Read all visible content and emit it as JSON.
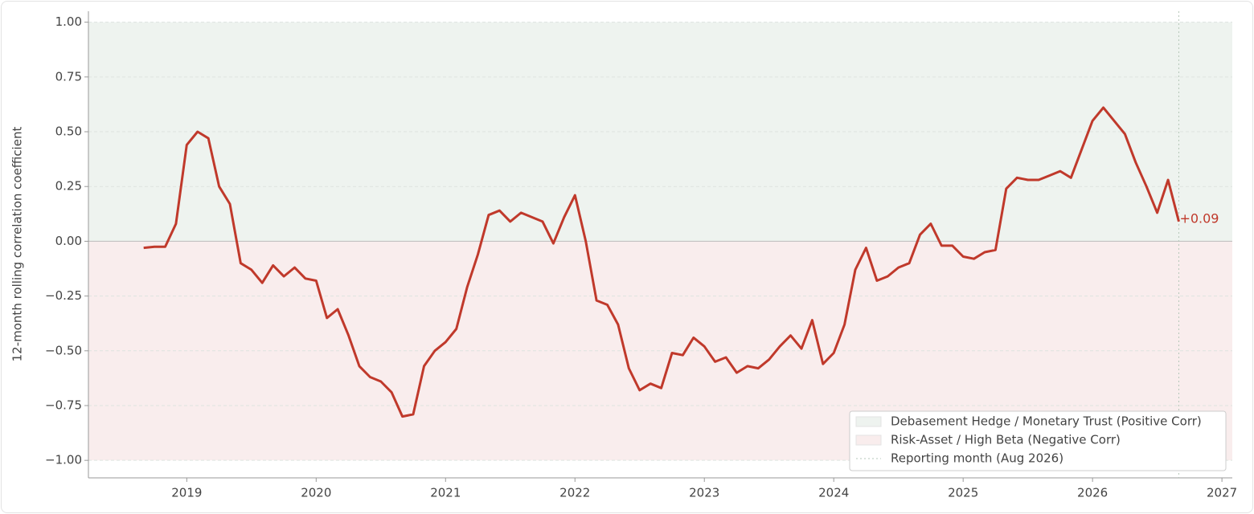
{
  "chart_data": {
    "type": "line",
    "y_label": "12-month rolling correlation coefficient",
    "x": [
      "2018-08",
      "2018-09",
      "2018-10",
      "2018-11",
      "2018-12",
      "2019-01",
      "2019-02",
      "2019-03",
      "2019-04",
      "2019-05",
      "2019-06",
      "2019-07",
      "2019-08",
      "2019-09",
      "2019-10",
      "2019-11",
      "2019-12",
      "2020-01",
      "2020-02",
      "2020-03",
      "2020-04",
      "2020-05",
      "2020-06",
      "2020-07",
      "2020-08",
      "2020-09",
      "2020-10",
      "2020-11",
      "2020-12",
      "2021-01",
      "2021-02",
      "2021-03",
      "2021-04",
      "2021-05",
      "2021-06",
      "2021-07",
      "2021-08",
      "2021-09",
      "2021-10",
      "2021-11",
      "2021-12",
      "2022-01",
      "2022-02",
      "2022-03",
      "2022-04",
      "2022-05",
      "2022-06",
      "2022-07",
      "2022-08",
      "2022-09",
      "2022-10",
      "2022-11",
      "2022-12",
      "2023-01",
      "2023-02",
      "2023-03",
      "2023-04",
      "2023-05",
      "2023-06",
      "2023-07",
      "2023-08",
      "2023-09",
      "2023-10",
      "2023-11",
      "2023-12",
      "2024-01",
      "2024-02",
      "2024-03",
      "2024-04",
      "2024-05",
      "2024-06",
      "2024-07",
      "2024-08",
      "2024-09",
      "2024-10",
      "2024-11",
      "2024-12",
      "2025-01",
      "2025-02",
      "2025-03",
      "2025-04",
      "2025-05",
      "2025-06",
      "2025-07",
      "2025-08",
      "2025-09",
      "2025-10",
      "2025-11",
      "2025-12",
      "2026-01",
      "2026-02",
      "2026-03",
      "2026-04",
      "2026-05",
      "2026-06",
      "2026-07",
      "2026-08"
    ],
    "values": [
      -0.03,
      -0.025,
      -0.025,
      0.08,
      0.44,
      0.5,
      0.47,
      0.25,
      0.17,
      -0.1,
      -0.13,
      -0.19,
      -0.11,
      -0.16,
      -0.12,
      -0.17,
      -0.18,
      -0.35,
      -0.31,
      -0.43,
      -0.57,
      -0.62,
      -0.64,
      -0.69,
      -0.8,
      -0.79,
      -0.57,
      -0.5,
      -0.46,
      -0.4,
      -0.21,
      -0.06,
      0.12,
      0.14,
      0.09,
      0.13,
      0.11,
      0.09,
      -0.01,
      0.11,
      0.21,
      0.0,
      -0.27,
      -0.29,
      -0.38,
      -0.58,
      -0.68,
      -0.65,
      -0.67,
      -0.51,
      -0.52,
      -0.44,
      -0.48,
      -0.55,
      -0.53,
      -0.6,
      -0.57,
      -0.58,
      -0.54,
      -0.48,
      -0.43,
      -0.49,
      -0.36,
      -0.56,
      -0.51,
      -0.38,
      -0.13,
      -0.03,
      -0.18,
      -0.16,
      -0.12,
      -0.1,
      0.03,
      0.08,
      -0.02,
      -0.02,
      -0.07,
      -0.08,
      -0.05,
      -0.04,
      0.24,
      0.29,
      0.28,
      0.28,
      0.3,
      0.32,
      0.29,
      0.42,
      0.55,
      0.61,
      0.55,
      0.49,
      0.36,
      0.25,
      0.13,
      0.28,
      0.09
    ],
    "color": "#c0392b",
    "end_label": "+0.09",
    "bands": [
      {
        "name": "Debasement Hedge / Monetary Trust (Positive Corr)",
        "from": 0,
        "to": 1,
        "color": "#eef3ef"
      },
      {
        "name": "Risk-Asset / High Beta (Negative Corr)",
        "from": -1,
        "to": 0,
        "color": "#f9eded"
      }
    ],
    "reporting_month": "2026-08",
    "reporting_label": "Reporting month (Aug 2026)",
    "xlim": [
      2018.24,
      2027.08
    ],
    "xticks": [
      2019,
      2020,
      2021,
      2022,
      2023,
      2024,
      2025,
      2026,
      2027
    ],
    "ylim": [
      -1.08,
      1.05
    ],
    "yticks": [
      {
        "value": 1,
        "label": "1.00"
      },
      {
        "value": 0.75,
        "label": "0.75"
      },
      {
        "value": 0.5,
        "label": "0.50"
      },
      {
        "value": 0.25,
        "label": "0.25"
      },
      {
        "value": 0,
        "label": "0.00"
      },
      {
        "value": -0.25,
        "label": "−0.25"
      },
      {
        "value": -0.5,
        "label": "−0.50"
      },
      {
        "value": -0.75,
        "label": "−0.75"
      },
      {
        "value": -1,
        "label": "−1.00"
      }
    ],
    "grid": true,
    "legend": "lower right"
  }
}
